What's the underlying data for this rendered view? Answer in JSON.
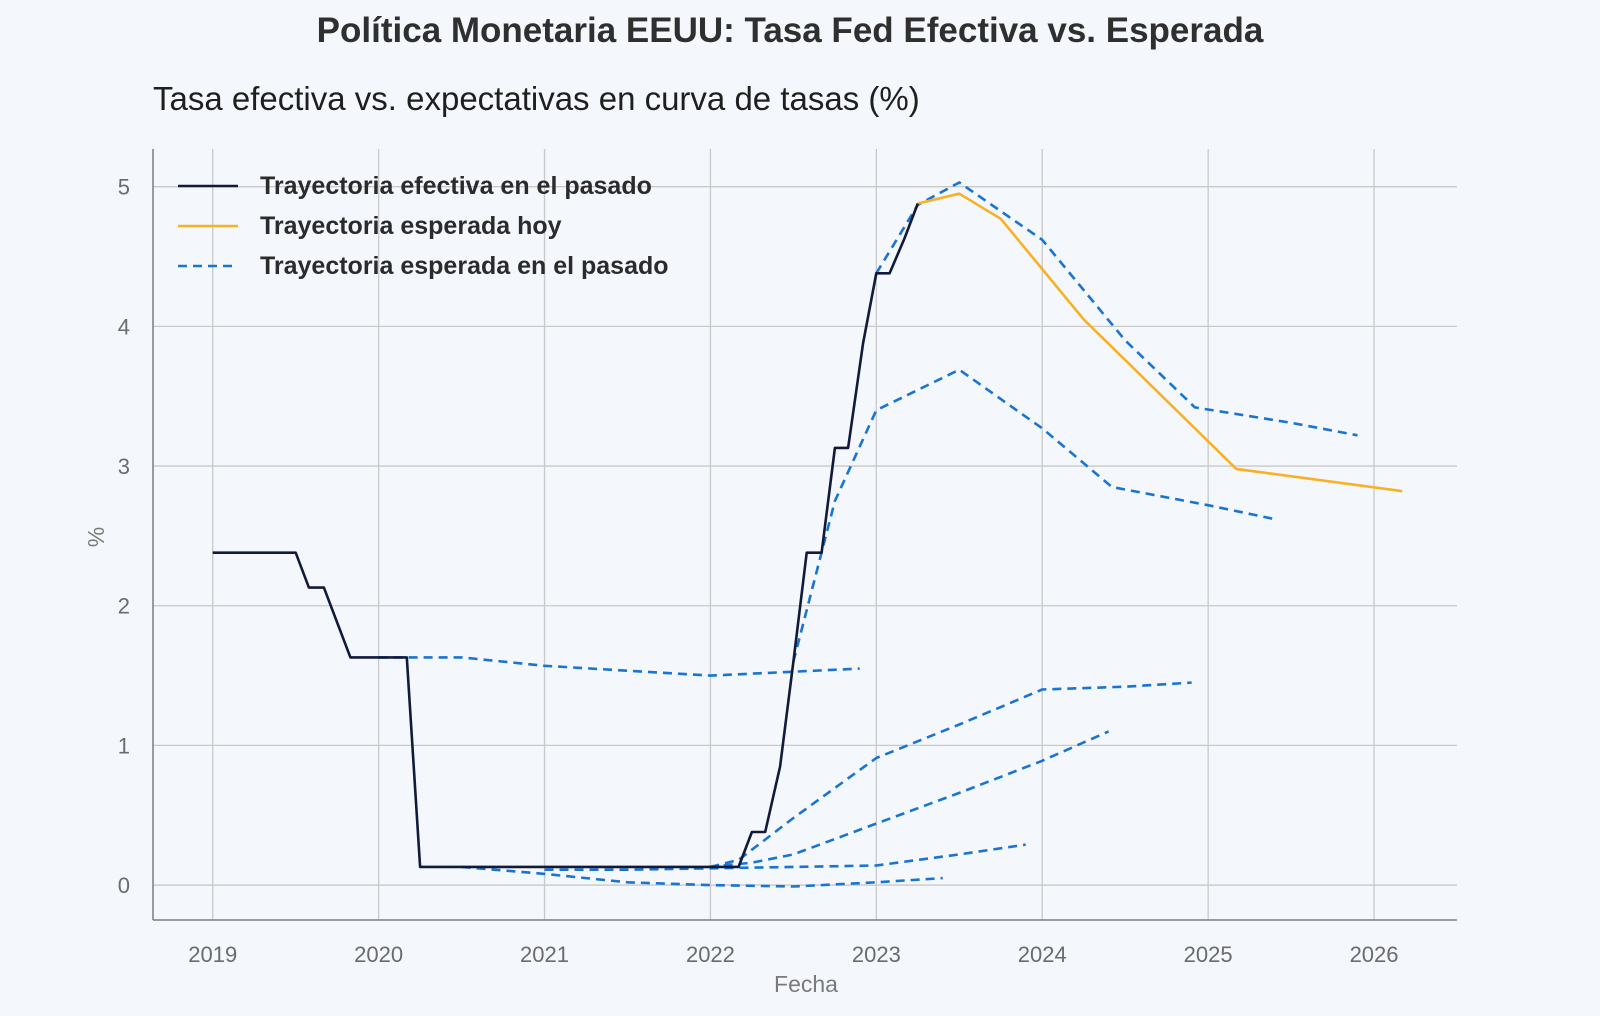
{
  "chart_data": {
    "type": "line",
    "title": "Política Monetaria EEUU: Tasa Fed Efectiva vs. Esperada",
    "subtitle": "Tasa efectiva vs. expectativas en curva de tasas (%)",
    "xlabel": "Fecha",
    "ylabel": "%",
    "xlim": [
      2018.64,
      2026.5
    ],
    "ylim": [
      -0.25,
      5.27
    ],
    "xticks": [
      2019,
      2020,
      2021,
      2022,
      2023,
      2024,
      2025,
      2026
    ],
    "yticks": [
      0,
      1,
      2,
      3,
      4,
      5
    ],
    "grid": true,
    "legend_position": "top-left",
    "colors": {
      "effective": "#111a3a",
      "expected_today": "#f8b125",
      "expected_past": "#1a74d1",
      "grid": "#c9c9c9",
      "background": "#f4f7fb"
    },
    "legend": [
      {
        "label": "Trayectoria efectiva en el pasado",
        "series": "effective"
      },
      {
        "label": "Trayectoria esperada hoy",
        "series": "expected_today"
      },
      {
        "label": "Trayectoria esperada en el pasado",
        "series": "expected_past"
      }
    ],
    "series": [
      {
        "name": "Trayectoria efectiva en el pasado",
        "key": "effective",
        "style": "solid",
        "x": [
          2019.0,
          2019.5,
          2019.58,
          2019.67,
          2019.83,
          2020.0,
          2020.17,
          2020.25,
          2020.5,
          2021.0,
          2021.5,
          2022.0,
          2022.17,
          2022.25,
          2022.33,
          2022.42,
          2022.5,
          2022.58,
          2022.67,
          2022.75,
          2022.83,
          2022.92,
          2023.0,
          2023.08,
          2023.17,
          2023.25
        ],
        "y": [
          2.38,
          2.38,
          2.13,
          2.13,
          1.63,
          1.63,
          1.63,
          0.13,
          0.13,
          0.13,
          0.13,
          0.13,
          0.13,
          0.38,
          0.38,
          0.85,
          1.6,
          2.38,
          2.38,
          3.13,
          3.13,
          3.88,
          4.38,
          4.38,
          4.63,
          4.88
        ]
      },
      {
        "name": "Trayectoria esperada hoy",
        "key": "expected_today",
        "style": "solid",
        "x": [
          2023.25,
          2023.5,
          2023.75,
          2024.25,
          2025.17,
          2026.17
        ],
        "y": [
          4.88,
          4.95,
          4.77,
          4.05,
          2.98,
          2.82
        ]
      },
      {
        "name": "Trayectoria esperada en el pasado",
        "key": "expected_past_1",
        "style": "dashed",
        "x": [
          2020.0,
          2020.5,
          2021.0,
          2022.0,
          2022.9
        ],
        "y": [
          1.63,
          1.63,
          1.57,
          1.5,
          1.55
        ]
      },
      {
        "name": "Trayectoria esperada en el pasado",
        "key": "expected_past_2",
        "style": "dashed",
        "x": [
          2020.5,
          2021.0,
          2021.5,
          2022.0,
          2022.5,
          2023.0,
          2023.4
        ],
        "y": [
          0.13,
          0.08,
          0.02,
          0.0,
          -0.01,
          0.02,
          0.05
        ]
      },
      {
        "name": "Trayectoria esperada en el pasado",
        "key": "expected_past_3",
        "style": "dashed",
        "x": [
          2021.0,
          2021.5,
          2022.0,
          2022.5,
          2023.0,
          2023.5,
          2023.9
        ],
        "y": [
          0.11,
          0.11,
          0.12,
          0.13,
          0.14,
          0.22,
          0.29
        ]
      },
      {
        "name": "Trayectoria esperada en el pasado",
        "key": "expected_past_4",
        "style": "dashed",
        "x": [
          2021.9,
          2022.25,
          2022.5,
          2023.0,
          2023.5,
          2024.0,
          2024.4
        ],
        "y": [
          0.12,
          0.16,
          0.22,
          0.44,
          0.66,
          0.89,
          1.1
        ]
      },
      {
        "name": "Trayectoria esperada en el pasado",
        "key": "expected_past_5",
        "style": "dashed",
        "x": [
          2022.0,
          2022.17,
          2022.5,
          2023.0,
          2023.5,
          2024.0,
          2024.5,
          2024.9
        ],
        "y": [
          0.13,
          0.18,
          0.48,
          0.91,
          1.15,
          1.4,
          1.42,
          1.45
        ]
      },
      {
        "name": "Trayectoria esperada en el pasado",
        "key": "expected_past_6",
        "style": "dashed",
        "x": [
          2022.5,
          2022.75,
          2023.0,
          2023.5,
          2024.0,
          2024.42,
          2025.0,
          2025.4
        ],
        "y": [
          1.6,
          2.75,
          3.4,
          3.69,
          3.27,
          2.85,
          2.72,
          2.62
        ]
      },
      {
        "name": "Trayectoria esperada en el pasado",
        "key": "expected_past_7",
        "style": "dashed",
        "x": [
          2023.0,
          2023.25,
          2023.5,
          2024.0,
          2024.5,
          2024.92,
          2025.5,
          2025.9
        ],
        "y": [
          4.38,
          4.87,
          5.03,
          4.62,
          3.9,
          3.42,
          3.31,
          3.22
        ]
      }
    ]
  }
}
